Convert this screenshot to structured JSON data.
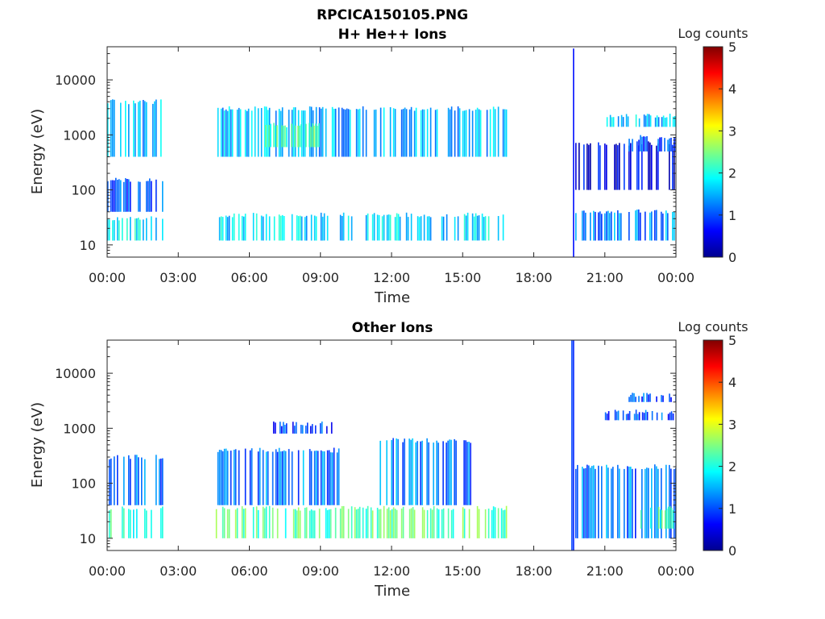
{
  "figure_title": "RPCICA150105.PNG",
  "colors": {
    "axis": "#262626",
    "background": "#ffffff",
    "colormap": [
      "#00008f",
      "#0000ff",
      "#0080ff",
      "#00ffff",
      "#80ff80",
      "#ffff00",
      "#ff8000",
      "#ff0000",
      "#800000"
    ]
  },
  "chart_data": [
    {
      "type": "heatmap",
      "title": "H+ He++ Ions",
      "xlabel": "Time",
      "ylabel": "Energy (eV)",
      "xlim": [
        "00:00",
        "24:00"
      ],
      "ylim": [
        6,
        40000
      ],
      "yscale": "log",
      "x_ticks": [
        "00:00",
        "03:00",
        "06:00",
        "09:00",
        "12:00",
        "15:00",
        "18:00",
        "21:00",
        "00:00"
      ],
      "y_ticks": [
        {
          "value": 10,
          "label": "10"
        },
        {
          "value": 100,
          "label": "100"
        },
        {
          "value": 1000,
          "label": "1000"
        },
        {
          "value": 10000,
          "label": "10000"
        }
      ],
      "colorbar": {
        "label": "Log counts",
        "min": 0,
        "max": 5,
        "ticks": [
          0,
          1,
          2,
          3,
          4,
          5
        ]
      },
      "data_gaps": [
        [
          "02:20",
          "04:35"
        ],
        [
          "16:55",
          "19:35"
        ]
      ],
      "bands": [
        {
          "t_start": "00:00",
          "t_end": "02:20",
          "e_low": 12,
          "e_high": 30,
          "log_counts": 1.8
        },
        {
          "t_start": "00:00",
          "t_end": "02:20",
          "e_low": 40,
          "e_high": 150,
          "log_counts": 1.0
        },
        {
          "t_start": "00:00",
          "t_end": "02:20",
          "e_low": 400,
          "e_high": 4000,
          "log_counts": 1.5
        },
        {
          "t_start": "04:35",
          "t_end": "16:55",
          "e_low": 12,
          "e_high": 35,
          "log_counts": 1.7
        },
        {
          "t_start": "04:35",
          "t_end": "16:55",
          "e_low": 400,
          "e_high": 3000,
          "log_counts": 1.5
        },
        {
          "t_start": "06:40",
          "t_end": "09:00",
          "e_low": 600,
          "e_high": 1500,
          "log_counts": 2.3
        },
        {
          "t_start": "19:35",
          "t_end": "19:45",
          "e_low": 6,
          "e_high": 40000,
          "log_counts": 0.8
        },
        {
          "t_start": "19:45",
          "t_end": "24:00",
          "e_low": 100,
          "e_high": 700,
          "log_counts": 0.5
        },
        {
          "t_start": "19:45",
          "t_end": "24:00",
          "e_low": 12,
          "e_high": 40,
          "log_counts": 1.3
        },
        {
          "t_start": "21:00",
          "t_end": "24:00",
          "e_low": 1400,
          "e_high": 2200,
          "log_counts": 1.6
        },
        {
          "t_start": "22:00",
          "t_end": "24:00",
          "e_low": 500,
          "e_high": 900,
          "log_counts": 1.0
        }
      ]
    },
    {
      "type": "heatmap",
      "title": "Other Ions",
      "xlabel": "Time",
      "ylabel": "Energy (eV)",
      "xlim": [
        "00:00",
        "24:00"
      ],
      "ylim": [
        6,
        40000
      ],
      "yscale": "log",
      "x_ticks": [
        "00:00",
        "03:00",
        "06:00",
        "09:00",
        "12:00",
        "15:00",
        "18:00",
        "21:00",
        "00:00"
      ],
      "y_ticks": [
        {
          "value": 10,
          "label": "10"
        },
        {
          "value": 100,
          "label": "100"
        },
        {
          "value": 1000,
          "label": "1000"
        },
        {
          "value": 10000,
          "label": "10000"
        }
      ],
      "colorbar": {
        "label": "Log counts",
        "min": 0,
        "max": 5,
        "ticks": [
          0,
          1,
          2,
          3,
          4,
          5
        ]
      },
      "data_gaps": [
        [
          "02:20",
          "04:35"
        ],
        [
          "16:55",
          "19:35"
        ]
      ],
      "bands": [
        {
          "t_start": "00:00",
          "t_end": "02:20",
          "e_low": 10,
          "e_high": 35,
          "log_counts": 2.2
        },
        {
          "t_start": "00:00",
          "t_end": "02:20",
          "e_low": 40,
          "e_high": 300,
          "log_counts": 1.2
        },
        {
          "t_start": "04:35",
          "t_end": "16:55",
          "e_low": 10,
          "e_high": 35,
          "log_counts": 2.3
        },
        {
          "t_start": "04:35",
          "t_end": "10:00",
          "e_low": 40,
          "e_high": 400,
          "log_counts": 1.2
        },
        {
          "t_start": "11:30",
          "t_end": "15:30",
          "e_low": 40,
          "e_high": 600,
          "log_counts": 1.2
        },
        {
          "t_start": "07:00",
          "t_end": "09:30",
          "e_low": 800,
          "e_high": 1200,
          "log_counts": 0.9
        },
        {
          "t_start": "19:35",
          "t_end": "19:45",
          "e_low": 6,
          "e_high": 40000,
          "log_counts": 0.5
        },
        {
          "t_start": "19:45",
          "t_end": "24:00",
          "e_low": 10,
          "e_high": 200,
          "log_counts": 1.2
        },
        {
          "t_start": "22:30",
          "t_end": "24:00",
          "e_low": 15,
          "e_high": 35,
          "log_counts": 2.2
        },
        {
          "t_start": "21:00",
          "t_end": "24:00",
          "e_low": 1400,
          "e_high": 2000,
          "log_counts": 1.0
        },
        {
          "t_start": "22:00",
          "t_end": "24:00",
          "e_low": 3000,
          "e_high": 4000,
          "log_counts": 1.0
        }
      ]
    }
  ]
}
